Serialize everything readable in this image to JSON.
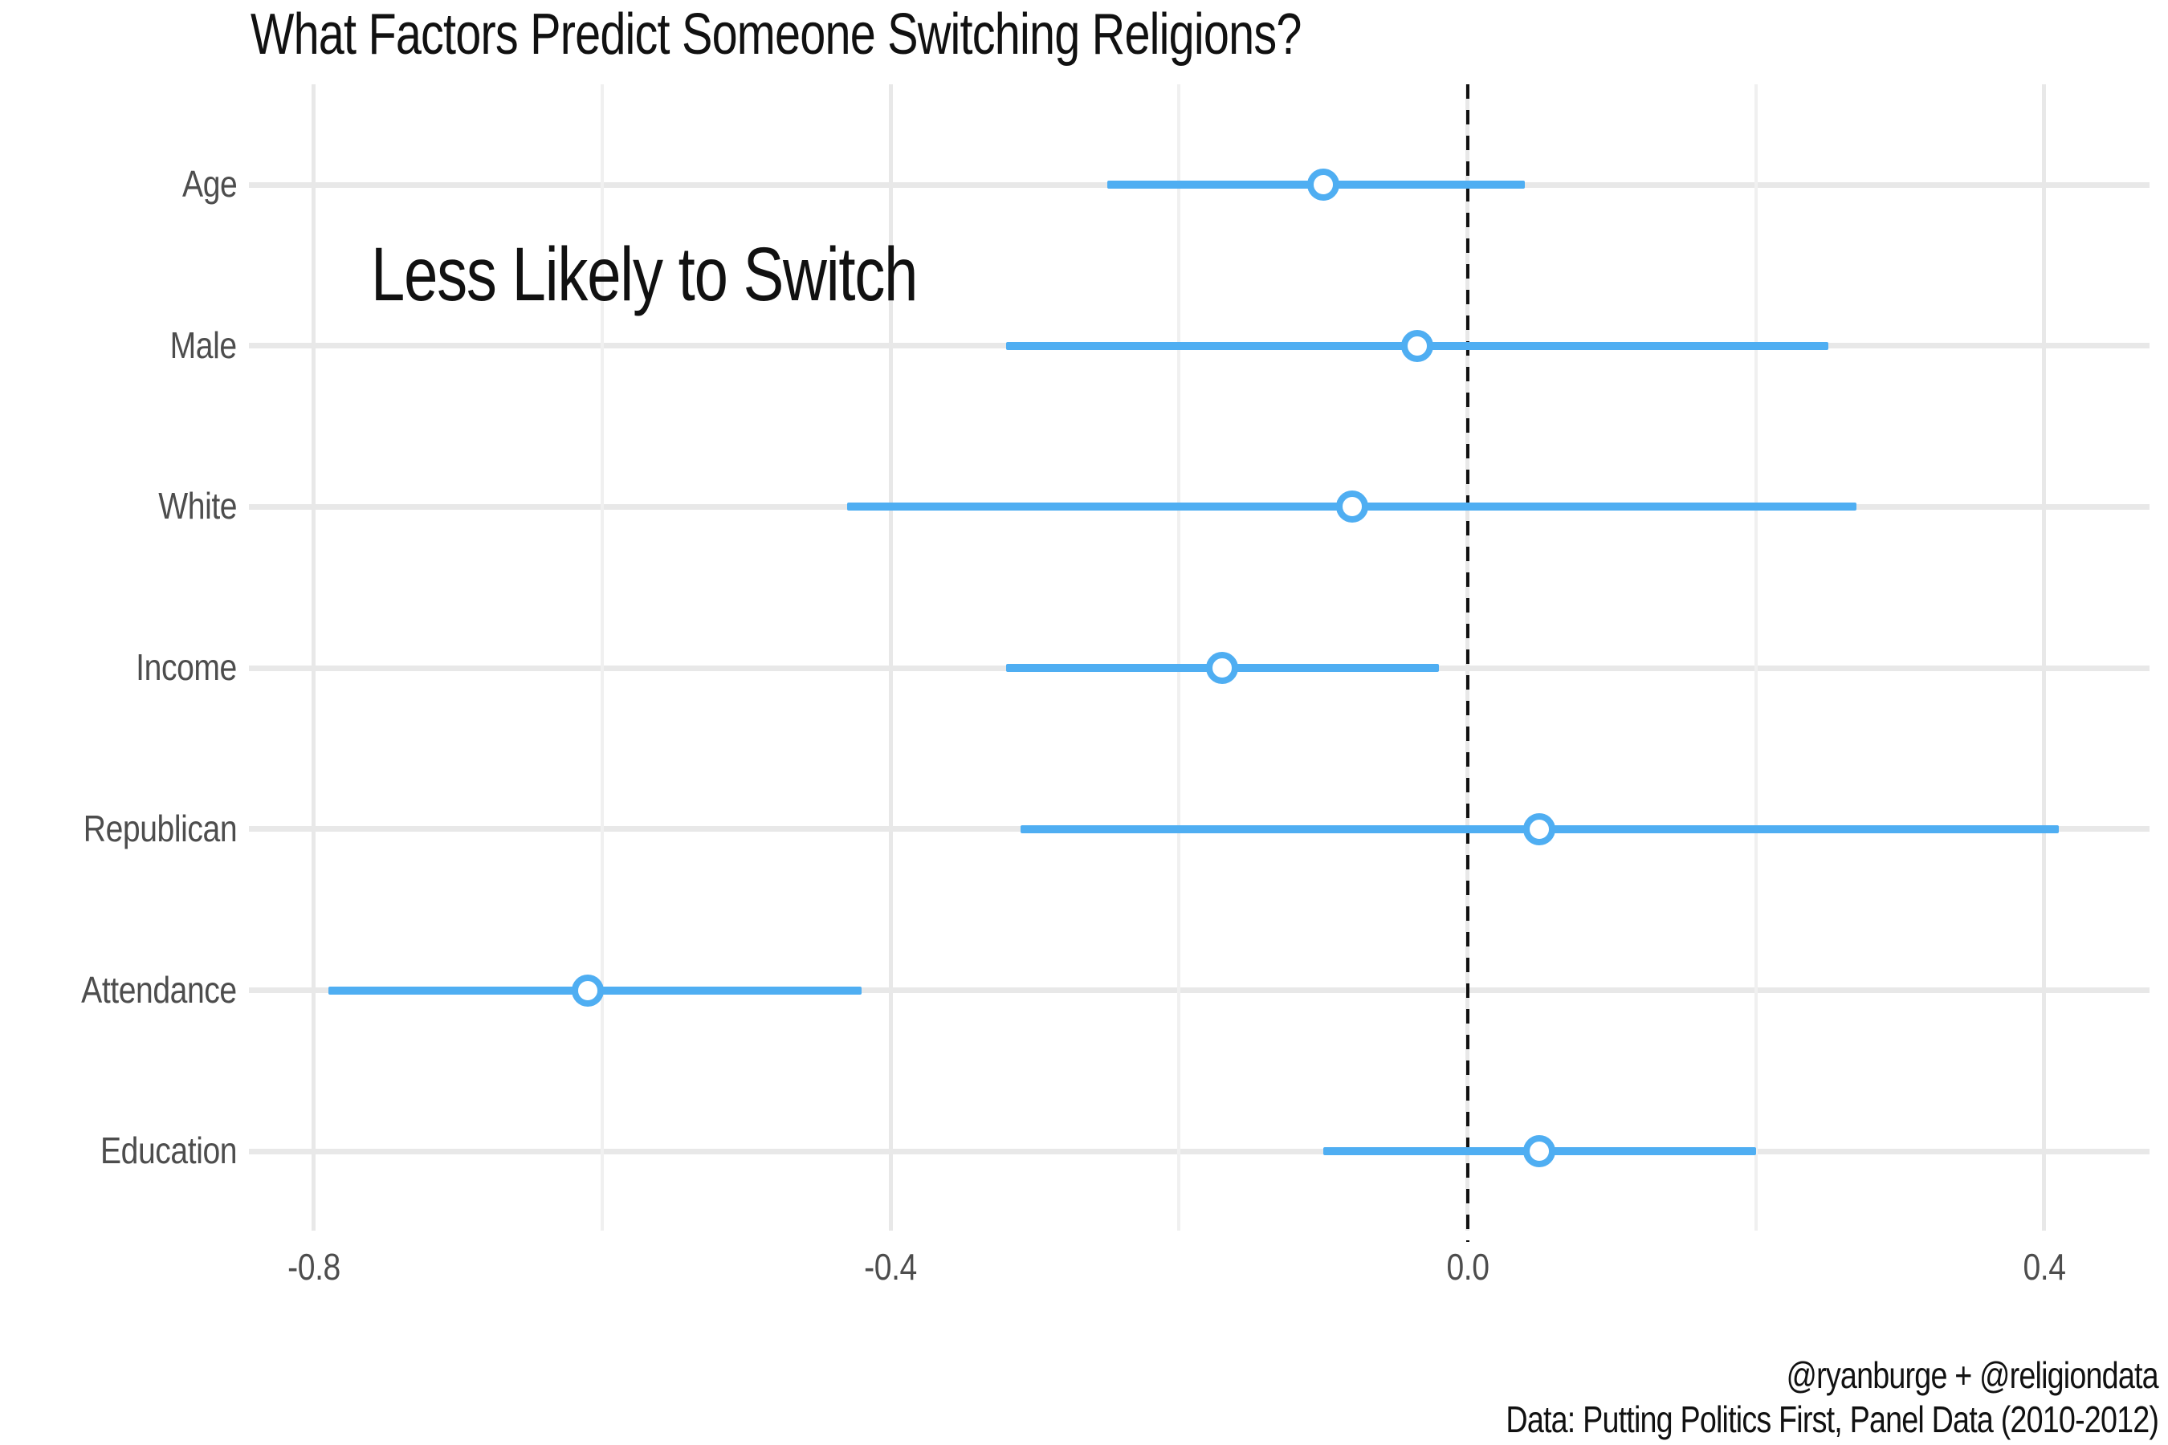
{
  "chart_data": {
    "type": "scatter",
    "variant": "coefficient-dot-whisker",
    "title": "What Factors Predict Someone Switching Religions?",
    "annotation": "Less Likely to Switch",
    "orientation": "horizontal",
    "categories": [
      "Age",
      "Male",
      "White",
      "Income",
      "Republican",
      "Attendance",
      "Education"
    ],
    "series": [
      {
        "name": "coefficient",
        "points": [
          -0.1,
          -0.035,
          -0.08,
          -0.17,
          0.05,
          -0.61,
          0.05
        ],
        "ci_low": [
          -0.25,
          -0.32,
          -0.43,
          -0.32,
          -0.31,
          -0.79,
          -0.1
        ],
        "ci_high": [
          0.04,
          0.25,
          0.27,
          -0.02,
          0.41,
          -0.42,
          0.2
        ]
      }
    ],
    "x_ticks": [
      -0.8,
      -0.4,
      0.0,
      0.4
    ],
    "x_tick_labels": [
      "-0.8",
      "-0.4",
      "0.0",
      "0.4"
    ],
    "x_minor_ticks": [
      -0.6,
      -0.2,
      0.2
    ],
    "xlim": [
      -0.845,
      0.473
    ],
    "zero_line": 0.0,
    "grid": true,
    "legend": "none",
    "xlabel": "",
    "ylabel": ""
  },
  "caption": {
    "line1": "@ryanburge + @religiondata",
    "line2": "Data: Putting Politics First, Panel Data (2010-2012)"
  },
  "colors": {
    "accent": "#4FAEF2",
    "grid_major": "#E8E8E8",
    "grid_minor": "#F0F0F0",
    "axis_text": "#4D4D4D",
    "zero_line": "#111111"
  }
}
